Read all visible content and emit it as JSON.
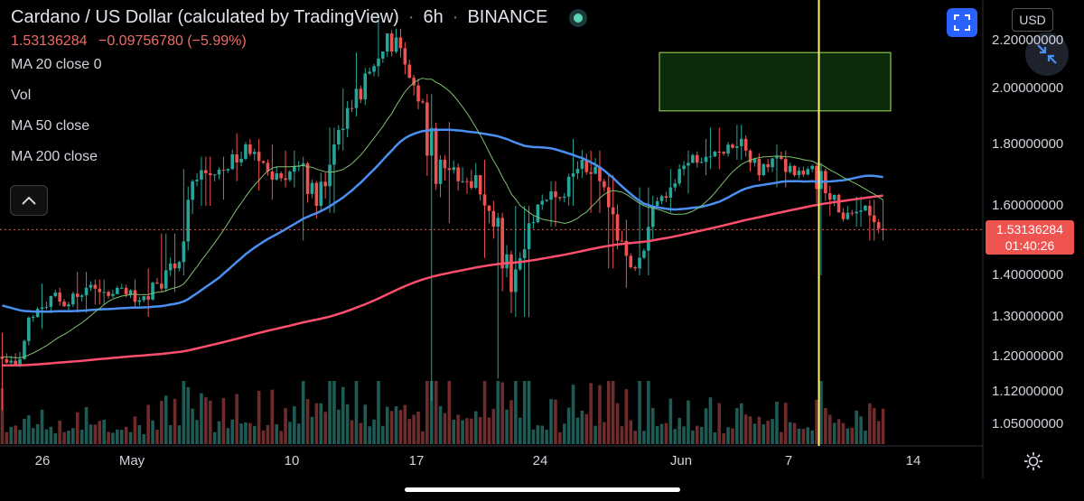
{
  "legend": {
    "symbol": "Cardano / US Dollar (calculated by TradingView)",
    "interval": "6h",
    "exchange": "BINANCE",
    "price": "1.53136284",
    "change": "−0.09756780 (−5.99%)",
    "indicators": [
      "MA 20 close 0",
      "Vol",
      "MA 50 close",
      "MA 200 close"
    ]
  },
  "toolbar": {
    "currency": "USD",
    "fullscreen_icon": "fullscreen-icon",
    "shrink_icon": "shrink-arrows-icon",
    "collapse_icon": "chevron-up-icon",
    "settings_icon": "gear-icon"
  },
  "price_tag": {
    "price": "1.53136284",
    "countdown": "01:40:26"
  },
  "colors": {
    "up": "#26a69a",
    "down": "#ef5350",
    "ma20": "#7ec16e",
    "ma50": "#4a90f2",
    "ma200": "#ff4f6d",
    "zone": "#0e2a0e",
    "marker": "#fff176"
  },
  "chart_data": {
    "type": "candlestick",
    "y_ticks": [
      "2.20000000",
      "2.00000000",
      "1.80000000",
      "1.60000000",
      "1.40000000",
      "1.30000000",
      "1.20000000",
      "1.12000000",
      "1.05000000"
    ],
    "x_ticks": [
      "26",
      "May",
      "10",
      "17",
      "24",
      "Jun",
      "7",
      "14"
    ],
    "current_price": 1.53136284,
    "ylim": [
      1.0,
      2.27
    ],
    "candles_daily": [
      [
        1.2,
        1.18,
        1.26,
        1.08
      ],
      [
        1.18,
        1.3,
        1.33,
        1.16
      ],
      [
        1.3,
        1.35,
        1.38,
        1.27
      ],
      [
        1.35,
        1.33,
        1.4,
        1.3
      ],
      [
        1.33,
        1.37,
        1.41,
        1.31
      ],
      [
        1.37,
        1.36,
        1.39,
        1.33
      ],
      [
        1.36,
        1.37,
        1.4,
        1.33
      ],
      [
        1.37,
        1.34,
        1.39,
        1.32
      ],
      [
        1.34,
        1.38,
        1.42,
        1.3
      ],
      [
        1.38,
        1.42,
        1.52,
        1.36
      ],
      [
        1.42,
        1.68,
        1.72,
        1.4
      ],
      [
        1.68,
        1.7,
        1.76,
        1.6
      ],
      [
        1.7,
        1.72,
        1.76,
        1.62
      ],
      [
        1.72,
        1.8,
        1.84,
        1.68
      ],
      [
        1.8,
        1.74,
        1.82,
        1.65
      ],
      [
        1.74,
        1.69,
        1.8,
        1.62
      ],
      [
        1.69,
        1.73,
        1.78,
        1.66
      ],
      [
        1.73,
        1.6,
        1.76,
        1.5
      ],
      [
        1.6,
        1.8,
        1.86,
        1.58
      ],
      [
        1.8,
        1.93,
        2.0,
        1.78
      ],
      [
        1.93,
        2.07,
        2.15,
        1.9
      ],
      [
        2.07,
        2.23,
        2.3,
        2.05
      ],
      [
        2.23,
        2.1,
        2.25,
        1.95
      ],
      [
        2.1,
        1.95,
        2.12,
        1.85
      ],
      [
        1.95,
        1.75,
        1.98,
        1.1
      ],
      [
        1.75,
        1.68,
        1.88,
        1.55
      ],
      [
        1.68,
        1.7,
        1.85,
        1.5
      ],
      [
        1.7,
        1.54,
        1.75,
        1.45
      ],
      [
        1.54,
        1.36,
        1.58,
        1.15
      ],
      [
        1.36,
        1.55,
        1.6,
        1.3
      ],
      [
        1.55,
        1.62,
        1.66,
        1.5
      ],
      [
        1.62,
        1.63,
        1.68,
        1.54
      ],
      [
        1.63,
        1.75,
        1.82,
        1.6
      ],
      [
        1.75,
        1.68,
        1.78,
        1.58
      ],
      [
        1.68,
        1.5,
        1.7,
        1.42
      ],
      [
        1.5,
        1.42,
        1.56,
        1.37
      ],
      [
        1.42,
        1.6,
        1.66,
        1.4
      ],
      [
        1.6,
        1.66,
        1.72,
        1.58
      ],
      [
        1.66,
        1.74,
        1.78,
        1.64
      ],
      [
        1.74,
        1.76,
        1.82,
        1.7
      ],
      [
        1.76,
        1.77,
        1.86,
        1.72
      ],
      [
        1.77,
        1.82,
        1.87,
        1.75
      ],
      [
        1.82,
        1.7,
        1.84,
        1.64
      ],
      [
        1.7,
        1.76,
        1.8,
        1.66
      ],
      [
        1.76,
        1.7,
        1.78,
        1.66
      ],
      [
        1.7,
        1.73,
        1.76,
        1.66
      ],
      [
        1.73,
        1.62,
        1.74,
        1.4
      ],
      [
        1.62,
        1.58,
        1.64,
        1.47
      ],
      [
        1.58,
        1.6,
        1.63,
        1.54
      ],
      [
        1.6,
        1.53,
        1.62,
        1.5
      ]
    ],
    "zone": {
      "y_low": 1.92,
      "y_high": 2.15
    },
    "marker_date_index": 48.7
  }
}
